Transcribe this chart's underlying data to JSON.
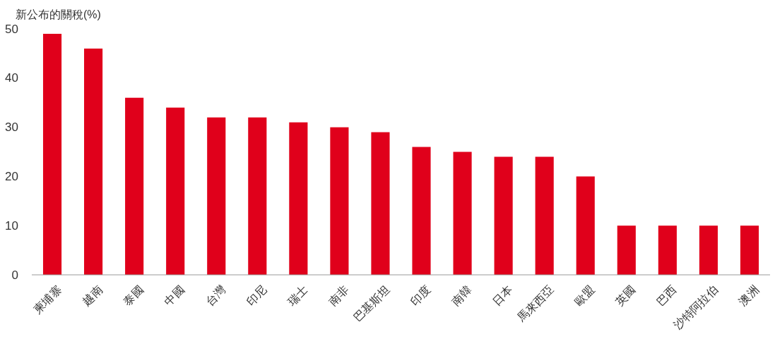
{
  "chart_data": {
    "type": "bar",
    "ylabel": "新公布的關稅(%)",
    "categories": [
      "柬埔寨",
      "越南",
      "泰國",
      "中國",
      "台灣",
      "印尼",
      "瑞士",
      "南非",
      "巴基斯坦",
      "印度",
      "南韓",
      "日本",
      "馬來西亞",
      "歐盟",
      "英國",
      "巴西",
      "沙特阿拉伯",
      "澳洲"
    ],
    "values": [
      49,
      46,
      36,
      34,
      32,
      32,
      31,
      30,
      29,
      26,
      25,
      24,
      24,
      20,
      10,
      10,
      10,
      10
    ],
    "color": "#e0001b",
    "ylim": [
      0,
      50
    ],
    "yticks": [
      0,
      10,
      20,
      30,
      40,
      50
    ],
    "grid": false
  }
}
